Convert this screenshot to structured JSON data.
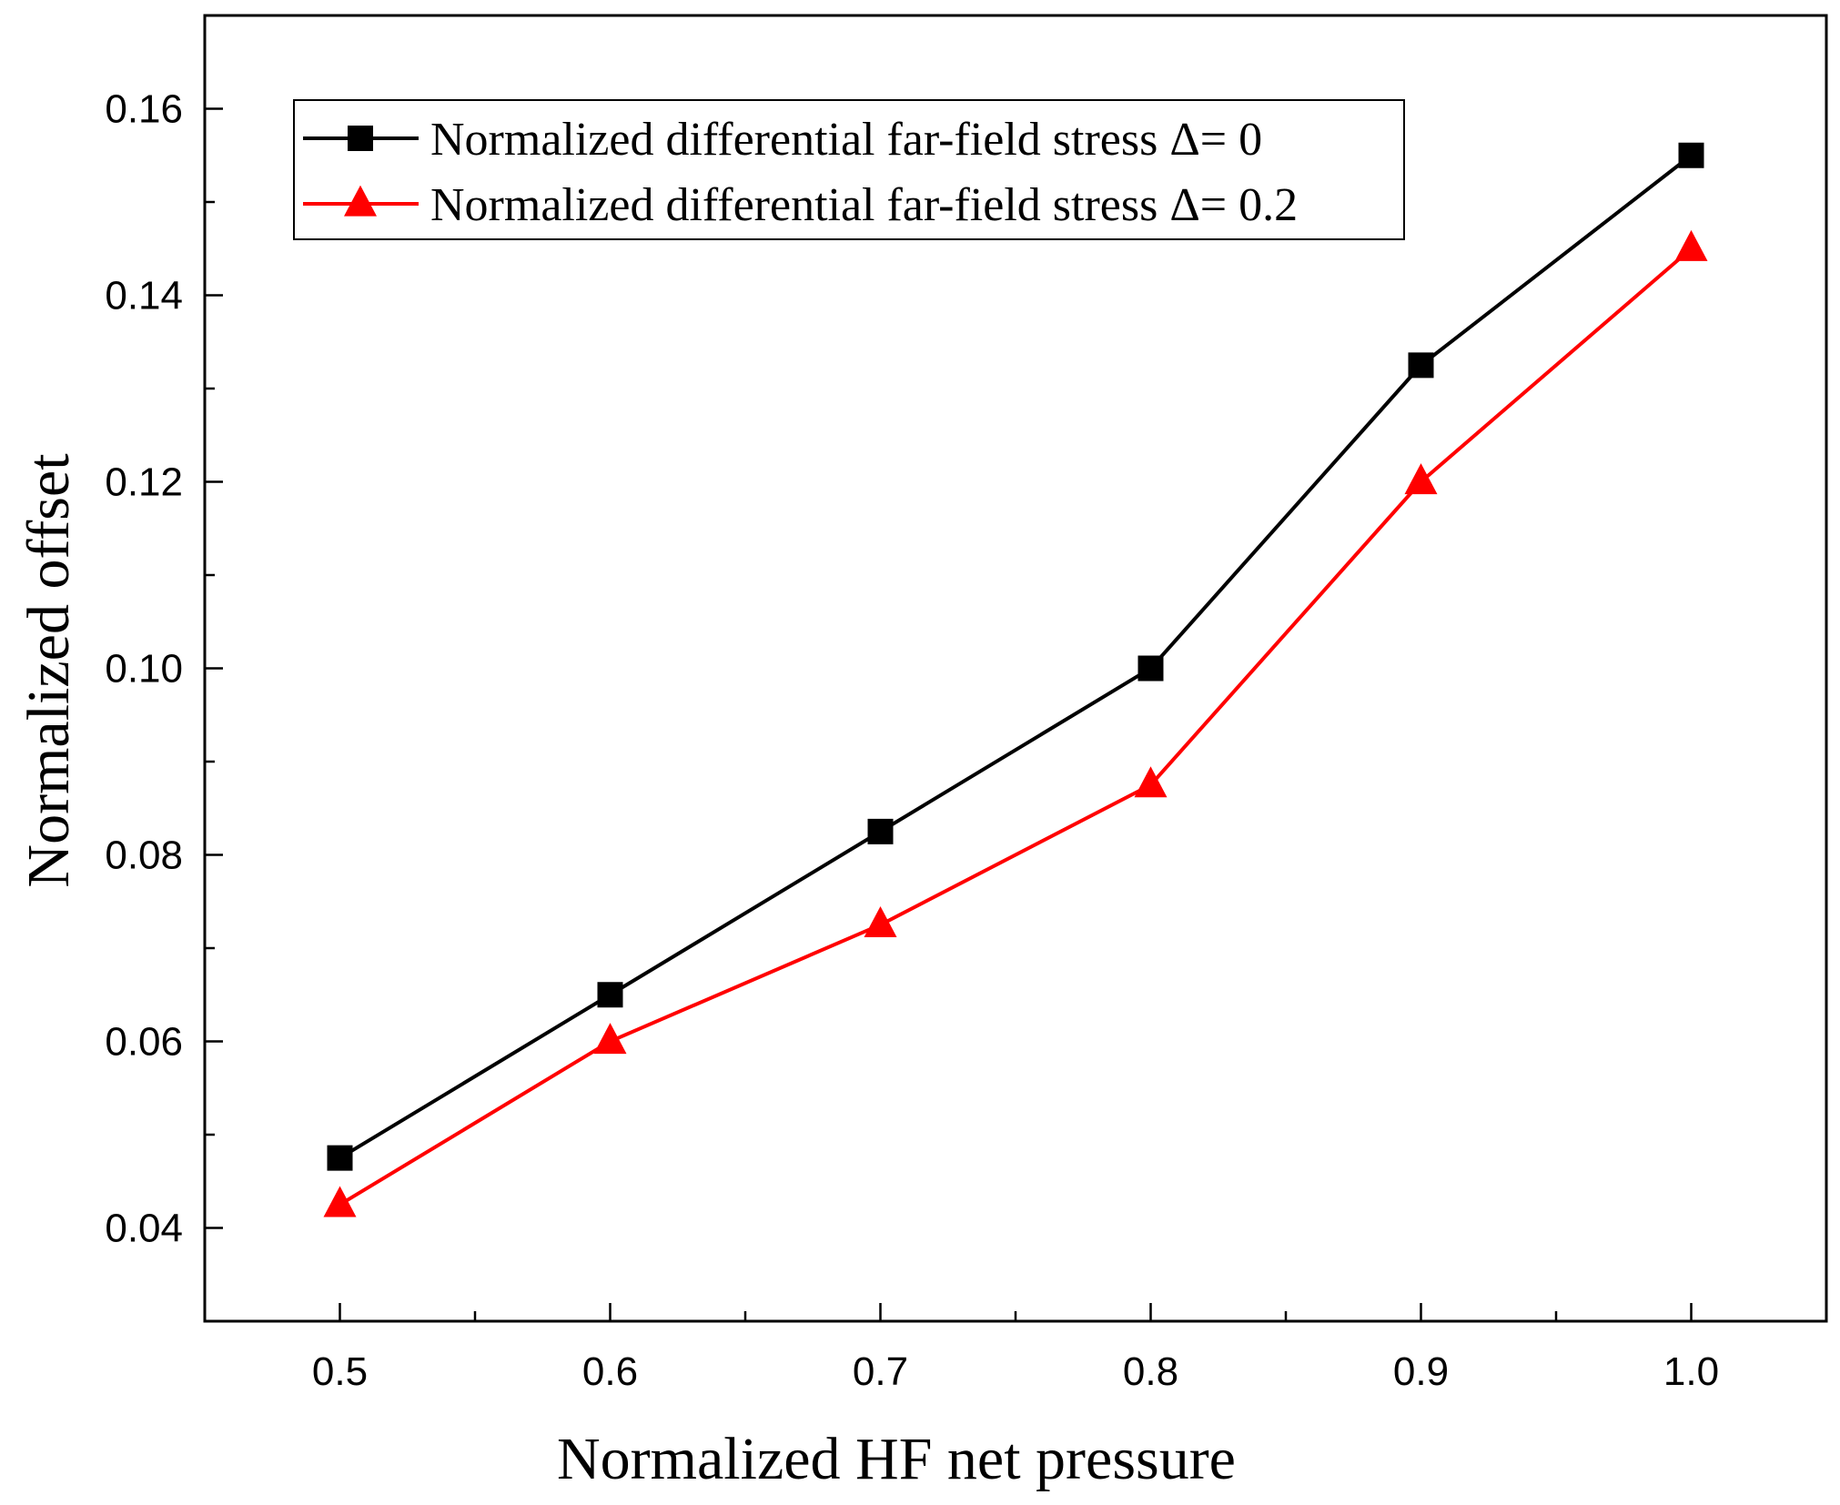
{
  "chart_data": {
    "type": "line",
    "title": "",
    "xlabel": "Normalized HF net pressure",
    "ylabel": "Normalized offset",
    "xlim": [
      0.45,
      1.05
    ],
    "ylim": [
      0.03,
      0.17
    ],
    "x_ticks": [
      "0.5",
      "0.6",
      "0.7",
      "0.8",
      "0.9",
      "1.0"
    ],
    "y_ticks": [
      "0.04",
      "0.06",
      "0.08",
      "0.10",
      "0.12",
      "0.14",
      "0.16"
    ],
    "grid": false,
    "legend_position": "top-left",
    "x": [
      0.5,
      0.6,
      0.7,
      0.8,
      0.9,
      1.0
    ],
    "series": [
      {
        "name": "Normalized differential far-field stress Δ= 0",
        "color": "#000000",
        "marker": "square",
        "values": [
          0.0475,
          0.065,
          0.0825,
          0.1,
          0.1325,
          0.155
        ]
      },
      {
        "name": "Normalized differential far-field stress Δ= 0.2",
        "color": "#ff0000",
        "marker": "triangle",
        "values": [
          0.0425,
          0.06,
          0.0725,
          0.0875,
          0.12,
          0.145
        ]
      }
    ]
  }
}
